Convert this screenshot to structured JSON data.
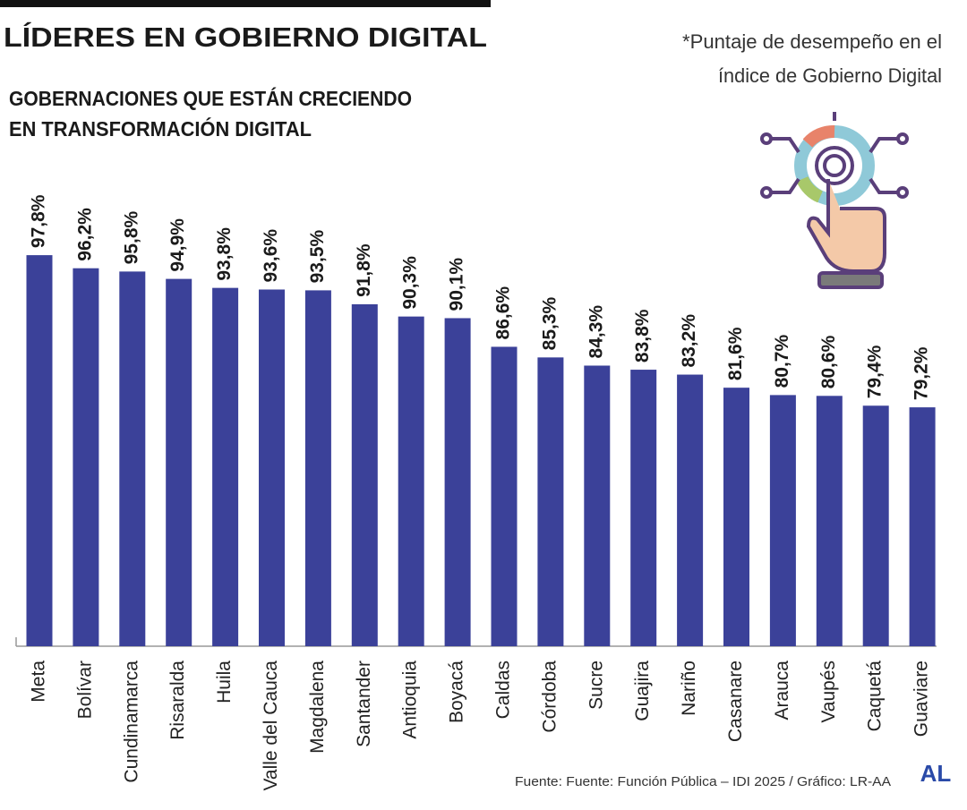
{
  "chart_data": {
    "type": "bar",
    "title": "LÍDERES EN GOBIERNO DIGITAL",
    "subtitle": [
      "GOBERNACIONES QUE ESTÁN CRECIENDO",
      "EN TRANSFORMACIÓN DIGITAL"
    ],
    "note": [
      "*Puntaje de desempeño en el",
      "índice de Gobierno Digital"
    ],
    "source": "Fuente: Fuente: Función Pública – IDI 2025 / Gráfico: LR-AA",
    "logo": "AL",
    "categories": [
      "Meta",
      "Bolívar",
      "Cundinamarca",
      "Risaralda",
      "Huila",
      "Valle del Cauca",
      "Magdalena",
      "Santander",
      "Antioquia",
      "Boyacá",
      "Caldas",
      "Córdoba",
      "Sucre",
      "Guajira",
      "Nariño",
      "Casanare",
      "Arauca",
      "Vaupés",
      "Caquetá",
      "Guaviare"
    ],
    "values": [
      97.8,
      96.2,
      95.8,
      94.9,
      93.8,
      93.6,
      93.5,
      91.8,
      90.3,
      90.1,
      86.6,
      85.3,
      84.3,
      83.8,
      83.2,
      81.6,
      80.7,
      80.6,
      79.4,
      79.2
    ],
    "value_labels": [
      "97,8%",
      "96,2%",
      "95,8%",
      "94,9%",
      "93,8%",
      "93,6%",
      "93,5%",
      "91,8%",
      "90,3%",
      "90,1%",
      "86,6%",
      "85,3%",
      "84,3%",
      "83,8%",
      "83,2%",
      "81,6%",
      "80,7%",
      "80,6%",
      "79,4%",
      "79,2%"
    ],
    "color": "#3b4199",
    "ylim": [
      50,
      107
    ]
  }
}
